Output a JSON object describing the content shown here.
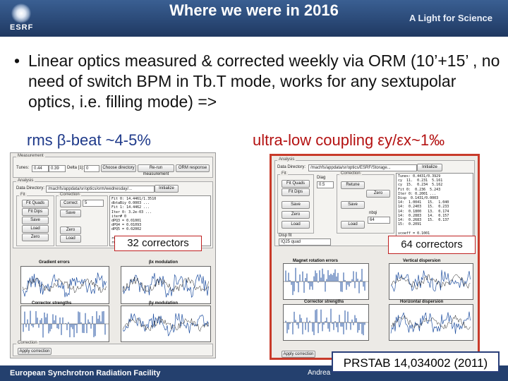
{
  "header": {
    "title": "Where we were in 2016",
    "tagline": "A Light for Science",
    "logo_text": "ESRF"
  },
  "bullet": {
    "symbol": "•",
    "text": "Linear optics measured & corrected weekly via ORM (10’+15’ , no need of switch BPM in Tb.T mode, works for any sextupolar optics, i.e. filling mode) =>"
  },
  "left_heading": "rms β-beat ~4-5%",
  "right_heading": "ultra-low coupling εy/εx~1‰",
  "left_panel": {
    "measurement_label": "Measurement",
    "tunes_label": "Tunes:",
    "tune_h": "0.44",
    "tune_v": "0.39",
    "delta_label": "Delta [1]:",
    "delta_value": "0",
    "buttons_top": [
      "Choose directory",
      "Re-run measurement",
      "ORM response"
    ],
    "analysis_label": "Analysis",
    "data_dir_label": "Data Directory:",
    "data_dir_value": "/machfs/appdata/sr/optics/orm/wednesday/...",
    "initialize": "Initialize",
    "fit_label": "Fit",
    "correction_label": "Correction",
    "fit_buttons": [
      "Fit Quads",
      "Fit Dips",
      "Save",
      "Load",
      "Zero",
      "Load"
    ],
    "corr_buttons": [
      "Correct",
      "Save",
      "Zero",
      "Load"
    ],
    "corr_field": "5",
    "output_lines": [
      "Fit 0: 14.4461/1.3510",
      "dbtaBiy 0.0003 ...",
      "Fit 1: 14.4462 ...",
      "Iter 0: 3.2e-03 ...",
      "iter# 0",
      "dPQ3 = 0.01001",
      "dPQ4 = 0.01093",
      "dPQ5 = 0.02002",
      "",
      "rms qsbeat = 0.0104",
      "rms ydisp = 0.0104"
    ],
    "correction_frame": "Correction",
    "apply_button": "Apply correction",
    "plot_titles": [
      "Gradient errors",
      "βx modulation",
      "Corrector strengths",
      "βy modulation"
    ],
    "callout": "32 correctors"
  },
  "right_panel": {
    "analysis_label": "Analysis",
    "data_dir_label": "Data Directory:",
    "data_dir_value": "/machfs/appdata/sr/optics/ESRF/Storage...",
    "initialize": "Initialize",
    "fit_label": "Fit",
    "correction_label": "Correction",
    "diag_label": "Diag",
    "diag_value": "0.5",
    "fit_buttons": [
      "Fit Quads",
      "Fit Dips",
      "Save",
      "Zero",
      "Load"
    ],
    "corr_buttons": [
      "Retune",
      "Save",
      "Load",
      "Zero"
    ],
    "nbqi_label": "nbqi",
    "nbqi_value": "64",
    "disp_label": "Disp fit",
    "disp_value": "IQ25 quad",
    "output_lines": [
      "Tunes: 0.4431/0.3929",
      "cy  11.  0.231  5.161",
      "cy  15.  0.234  5.162",
      "Fit 0:  0.236  5.243",
      "Iter 0: 0.2001 ...",
      "Disp  0.1431/0.0003",
      "14:  1.0041   15.  1.040",
      "14:  0.2403   15.  0.233",
      "14:  0.1800   13.  0.174",
      "14:  0.2883   14.  0.157",
      "14:  0.2683   15.  0.137",
      "15:  0.2091",
      "",
      "vcoeff = 0.1001",
      "  1:   0.2020",
      "  11:  0.1172"
    ],
    "apply_button": "Apply correction",
    "plot_titles": [
      "Magnet rotation errors",
      "Vertical dispersion",
      "Corrector strengths",
      "Horizontal dispersion"
    ],
    "callout": "64 correctors"
  },
  "footer": {
    "institution": "European Synchrotron Radiation Facility",
    "author": "Andrea",
    "reference": "PRSTAB 14,034002 (2011)"
  },
  "colors": {
    "bar": "#24406e",
    "left_heading": "#1f3a8a",
    "right_heading": "#b41212",
    "highlight_border": "#c83a2a",
    "trace": "#1f4fa0"
  }
}
